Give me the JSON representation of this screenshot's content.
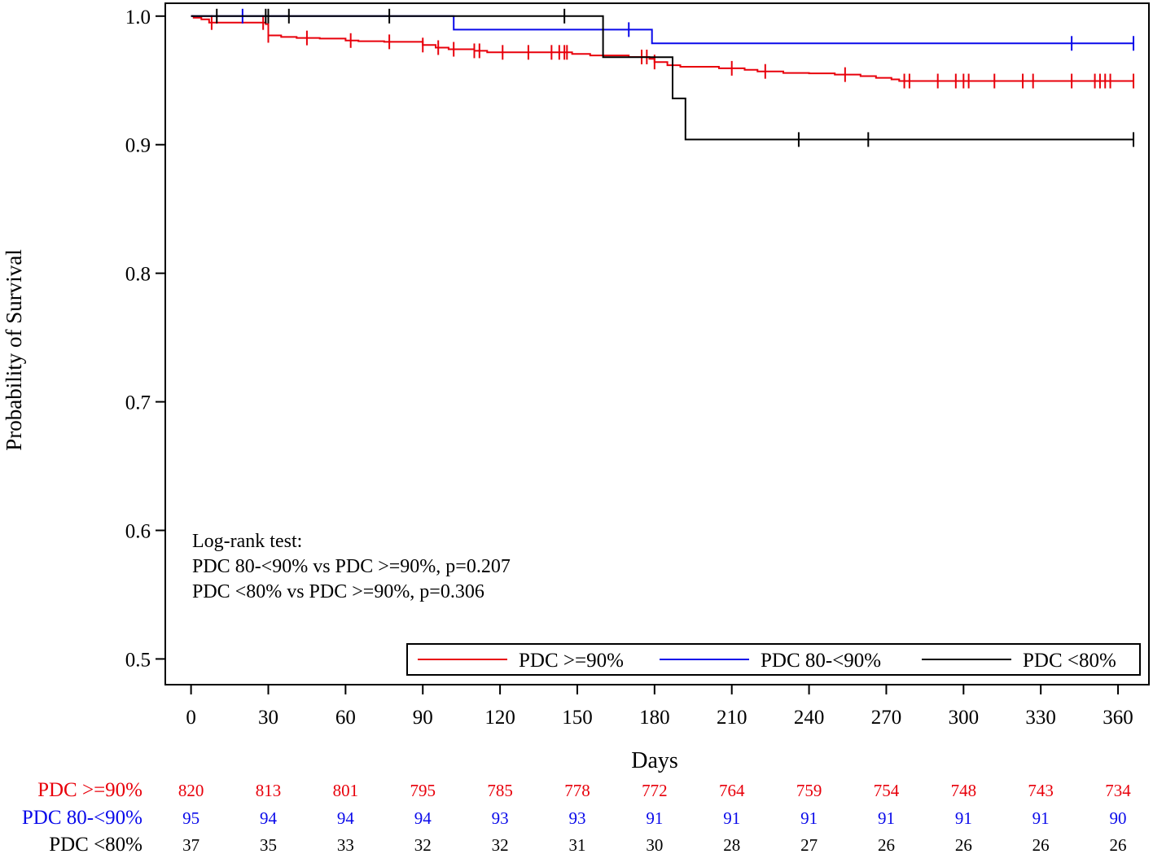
{
  "chart_data": {
    "type": "line",
    "subtype": "kaplan-meier",
    "title": "",
    "xlabel": "Days",
    "ylabel": "Probability of Survival",
    "xlim": [
      -10,
      372
    ],
    "ylim": [
      0.48,
      1.01
    ],
    "xticks": [
      0,
      30,
      60,
      90,
      120,
      150,
      180,
      210,
      240,
      270,
      300,
      330,
      360
    ],
    "yticks": [
      0.5,
      0.6,
      0.7,
      0.8,
      0.9,
      1.0
    ],
    "ytick_labels": [
      "0.5",
      "0.6",
      "0.7",
      "0.8",
      "0.9",
      "1.0"
    ],
    "annotation": {
      "lines": [
        "Log-rank test:",
        "PDC 80-<90% vs PDC >=90%, p=0.207",
        "PDC <80% vs PDC >=90%, p=0.306"
      ]
    },
    "legend_position": "bottom-right",
    "series": [
      {
        "name": "PDC >=90%",
        "color": "#e8000b",
        "steps": [
          [
            0,
            1.0
          ],
          [
            1,
            0.9988
          ],
          [
            4,
            0.9975
          ],
          [
            7,
            0.995
          ],
          [
            14,
            0.995
          ],
          [
            29,
            0.9938
          ],
          [
            30,
            0.985
          ],
          [
            35,
            0.9838
          ],
          [
            41,
            0.983
          ],
          [
            50,
            0.9825
          ],
          [
            60,
            0.981
          ],
          [
            65,
            0.9805
          ],
          [
            75,
            0.98
          ],
          [
            88,
            0.98
          ],
          [
            90,
            0.9775
          ],
          [
            95,
            0.9755
          ],
          [
            100,
            0.9742
          ],
          [
            110,
            0.973
          ],
          [
            115,
            0.9718
          ],
          [
            130,
            0.9718
          ],
          [
            145,
            0.9718
          ],
          [
            148,
            0.9706
          ],
          [
            155,
            0.9694
          ],
          [
            170,
            0.9682
          ],
          [
            178,
            0.9668
          ],
          [
            180,
            0.9643
          ],
          [
            185,
            0.9618
          ],
          [
            190,
            0.9606
          ],
          [
            200,
            0.9606
          ],
          [
            205,
            0.9594
          ],
          [
            215,
            0.9582
          ],
          [
            220,
            0.957
          ],
          [
            230,
            0.9558
          ],
          [
            240,
            0.9555
          ],
          [
            250,
            0.9545
          ],
          [
            260,
            0.9533
          ],
          [
            266,
            0.952
          ],
          [
            272,
            0.9508
          ],
          [
            275,
            0.9495
          ],
          [
            366,
            0.9495
          ]
        ],
        "censor": [
          8,
          28,
          30,
          45,
          62,
          77,
          90,
          96,
          102,
          110,
          112,
          121,
          131,
          140,
          143,
          145,
          146,
          175,
          177,
          180,
          210,
          223,
          254,
          277,
          279,
          290,
          297,
          300,
          302,
          312,
          323,
          327,
          342,
          351,
          353,
          355,
          357,
          366
        ]
      },
      {
        "name": "PDC 80-<90%",
        "color": "#0a0aea",
        "steps": [
          [
            0,
            1.0
          ],
          [
            102,
            1.0
          ],
          [
            102,
            0.9895
          ],
          [
            179,
            0.9895
          ],
          [
            179,
            0.9788
          ],
          [
            366,
            0.9788
          ]
        ],
        "censor": [
          20,
          170,
          342,
          366
        ]
      },
      {
        "name": "PDC <80%",
        "color": "#000000",
        "steps": [
          [
            0,
            1.0
          ],
          [
            160,
            1.0
          ],
          [
            160,
            0.968
          ],
          [
            187,
            0.968
          ],
          [
            187,
            0.936
          ],
          [
            192,
            0.936
          ],
          [
            192,
            0.904
          ],
          [
            366,
            0.904
          ]
        ],
        "censor": [
          10,
          29,
          30,
          38,
          77,
          145,
          236,
          263,
          366
        ]
      }
    ],
    "risk_table": {
      "times": [
        0,
        30,
        60,
        90,
        120,
        150,
        180,
        210,
        240,
        270,
        300,
        330,
        360
      ],
      "rows": [
        {
          "label": "PDC >=90%",
          "color": "#e8000b",
          "values": [
            "820",
            "813",
            "801",
            "795",
            "785",
            "778",
            "772",
            "764",
            "759",
            "754",
            "748",
            "743",
            "734"
          ]
        },
        {
          "label": "PDC 80-<90%",
          "color": "#0a0aea",
          "values": [
            "95",
            "94",
            "94",
            "94",
            "93",
            "93",
            "91",
            "91",
            "91",
            "91",
            "91",
            "91",
            "90"
          ]
        },
        {
          "label": "PDC <80%",
          "color": "#000000",
          "values": [
            "37",
            "35",
            "33",
            "32",
            "32",
            "31",
            "30",
            "28",
            "27",
            "26",
            "26",
            "26",
            "26"
          ]
        }
      ]
    }
  }
}
